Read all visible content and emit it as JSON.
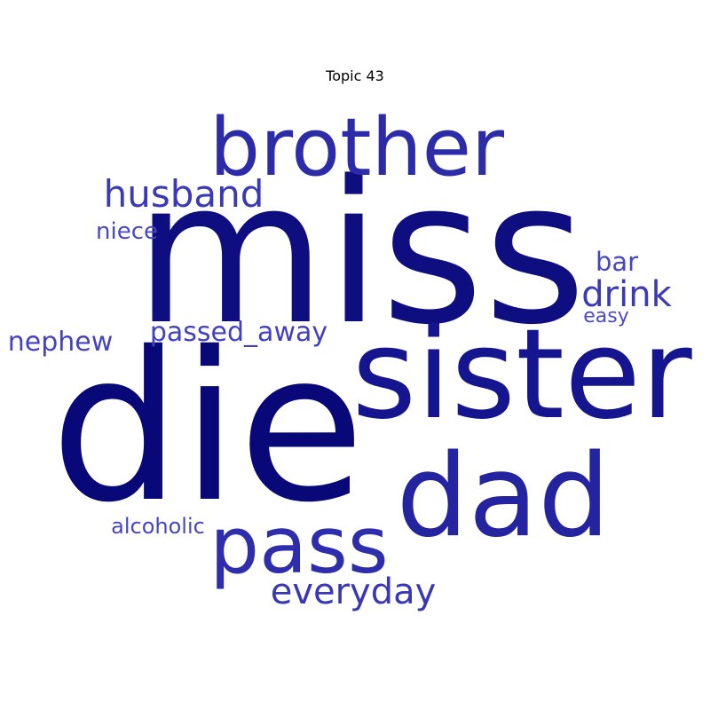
{
  "title": "Topic 43",
  "words": [
    {
      "text": "miss",
      "color": "#0e0e80"
    },
    {
      "text": "die",
      "color": "#080878"
    },
    {
      "text": "sister",
      "color": "#151590"
    },
    {
      "text": "brother",
      "color": "#2c2ca8"
    },
    {
      "text": "dad",
      "color": "#2424a0"
    },
    {
      "text": "pass",
      "color": "#2e2ead"
    },
    {
      "text": "husband",
      "color": "#3a3ab8"
    },
    {
      "text": "everyday",
      "color": "#3838b6"
    },
    {
      "text": "drink",
      "color": "#3a3ab6"
    },
    {
      "text": "passed_away",
      "color": "#4040c0"
    },
    {
      "text": "nephew",
      "color": "#4242c2"
    },
    {
      "text": "niece",
      "color": "#4848c6"
    },
    {
      "text": "bar",
      "color": "#4646c4"
    },
    {
      "text": "alcoholic",
      "color": "#4646c4"
    },
    {
      "text": "easy",
      "color": "#4a4ac8"
    }
  ]
}
